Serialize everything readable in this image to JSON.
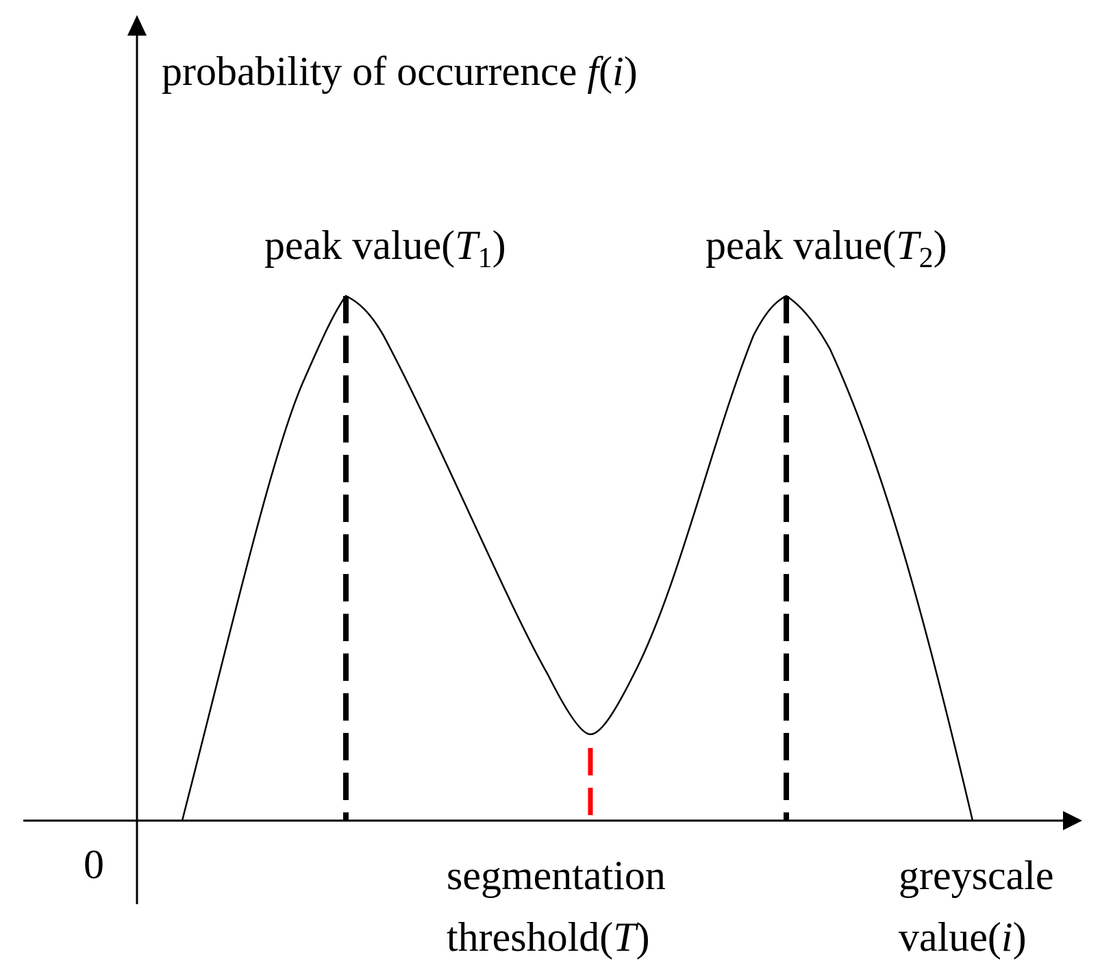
{
  "labels": {
    "y_axis": {
      "prefix": "probability of occurrence ",
      "fn": "f",
      "open": "(",
      "var": "i",
      "close": ")"
    },
    "origin": "0",
    "peak1": {
      "prefix": "peak value(",
      "var": "T",
      "sub": "1",
      "close": ")"
    },
    "peak2": {
      "prefix": "peak value(",
      "var": "T",
      "sub": "2",
      "close": ")"
    },
    "threshold": {
      "line1": "segmentation",
      "line2_prefix": "threshold(",
      "var": "T",
      "close": ")"
    },
    "x_axis": {
      "line1": "greyscale",
      "line2_prefix": "value(",
      "var": "i",
      "close": ")"
    }
  },
  "colors": {
    "ink": "#000000",
    "threshold_marker": "#ff0000",
    "background": "#ffffff"
  }
}
